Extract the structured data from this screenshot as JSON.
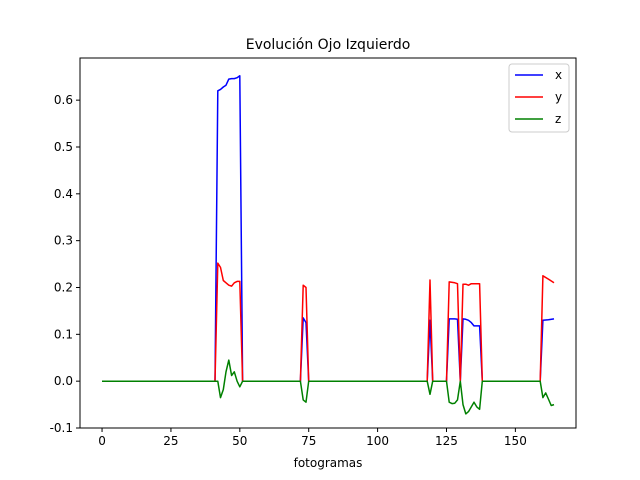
{
  "chart_data": {
    "type": "line",
    "title": "Evolución Ojo Izquierdo",
    "xlabel": "fotogramas",
    "ylabel": "",
    "xlim": [
      -8,
      172
    ],
    "ylim": [
      -0.1,
      0.69
    ],
    "xticks": [
      0,
      25,
      50,
      75,
      100,
      125,
      150
    ],
    "yticks": [
      -0.1,
      0.0,
      0.1,
      0.2,
      0.3,
      0.4,
      0.5,
      0.6
    ],
    "grid": false,
    "legend_position": "top-right",
    "series": [
      {
        "name": "x",
        "color": "#0000ff",
        "points": [
          [
            0,
            0
          ],
          [
            41,
            0
          ],
          [
            42,
            0.62
          ],
          [
            43,
            0.623
          ],
          [
            44,
            0.628
          ],
          [
            45,
            0.632
          ],
          [
            46,
            0.645
          ],
          [
            47,
            0.646
          ],
          [
            48,
            0.646
          ],
          [
            49,
            0.648
          ],
          [
            50,
            0.652
          ],
          [
            51,
            0.0
          ],
          [
            72,
            0
          ],
          [
            73,
            0.135
          ],
          [
            74,
            0.125
          ],
          [
            75,
            0
          ],
          [
            118,
            0
          ],
          [
            119,
            0.13
          ],
          [
            120,
            0
          ],
          [
            125,
            0
          ],
          [
            126,
            0.133
          ],
          [
            128,
            0.133
          ],
          [
            129,
            0.132
          ],
          [
            130,
            0
          ],
          [
            131,
            0.133
          ],
          [
            132,
            0.132
          ],
          [
            133,
            0.13
          ],
          [
            134,
            0.125
          ],
          [
            135,
            0.118
          ],
          [
            137,
            0.118
          ],
          [
            138,
            0
          ],
          [
            159,
            0
          ],
          [
            160,
            0.13
          ],
          [
            162,
            0.131
          ],
          [
            164,
            0.133
          ]
        ]
      },
      {
        "name": "y",
        "color": "#ff0000",
        "points": [
          [
            0,
            0
          ],
          [
            41,
            0
          ],
          [
            42,
            0.252
          ],
          [
            43,
            0.243
          ],
          [
            44,
            0.215
          ],
          [
            45,
            0.21
          ],
          [
            46,
            0.205
          ],
          [
            47,
            0.203
          ],
          [
            48,
            0.21
          ],
          [
            49,
            0.213
          ],
          [
            50,
            0.213
          ],
          [
            51,
            0.0
          ],
          [
            72,
            0
          ],
          [
            73,
            0.205
          ],
          [
            74,
            0.2
          ],
          [
            75,
            0
          ],
          [
            118,
            0
          ],
          [
            119,
            0.216
          ],
          [
            120,
            0
          ],
          [
            125,
            0
          ],
          [
            126,
            0.212
          ],
          [
            128,
            0.21
          ],
          [
            129,
            0.208
          ],
          [
            130,
            0
          ],
          [
            131,
            0.207
          ],
          [
            132,
            0.207
          ],
          [
            133,
            0.205
          ],
          [
            134,
            0.208
          ],
          [
            137,
            0.208
          ],
          [
            138,
            0
          ],
          [
            159,
            0
          ],
          [
            160,
            0.225
          ],
          [
            162,
            0.218
          ],
          [
            164,
            0.21
          ]
        ]
      },
      {
        "name": "z",
        "color": "#008000",
        "points": [
          [
            0,
            0
          ],
          [
            41,
            0
          ],
          [
            42,
            0.0
          ],
          [
            43,
            -0.035
          ],
          [
            44,
            -0.018
          ],
          [
            45,
            0.02
          ],
          [
            46,
            0.045
          ],
          [
            47,
            0.012
          ],
          [
            48,
            0.02
          ],
          [
            49,
            0.0
          ],
          [
            50,
            -0.012
          ],
          [
            51,
            0.0
          ],
          [
            72,
            0
          ],
          [
            73,
            -0.04
          ],
          [
            74,
            -0.045
          ],
          [
            75,
            0
          ],
          [
            118,
            0
          ],
          [
            119,
            -0.028
          ],
          [
            120,
            0
          ],
          [
            125,
            0
          ],
          [
            126,
            -0.045
          ],
          [
            127,
            -0.048
          ],
          [
            128,
            -0.047
          ],
          [
            129,
            -0.04
          ],
          [
            130,
            0.0
          ],
          [
            131,
            -0.05
          ],
          [
            132,
            -0.07
          ],
          [
            133,
            -0.065
          ],
          [
            134,
            -0.055
          ],
          [
            135,
            -0.045
          ],
          [
            136,
            -0.055
          ],
          [
            137,
            -0.06
          ],
          [
            138,
            0
          ],
          [
            159,
            0
          ],
          [
            160,
            -0.035
          ],
          [
            161,
            -0.025
          ],
          [
            162,
            -0.038
          ],
          [
            163,
            -0.052
          ],
          [
            164,
            -0.05
          ]
        ]
      }
    ]
  }
}
